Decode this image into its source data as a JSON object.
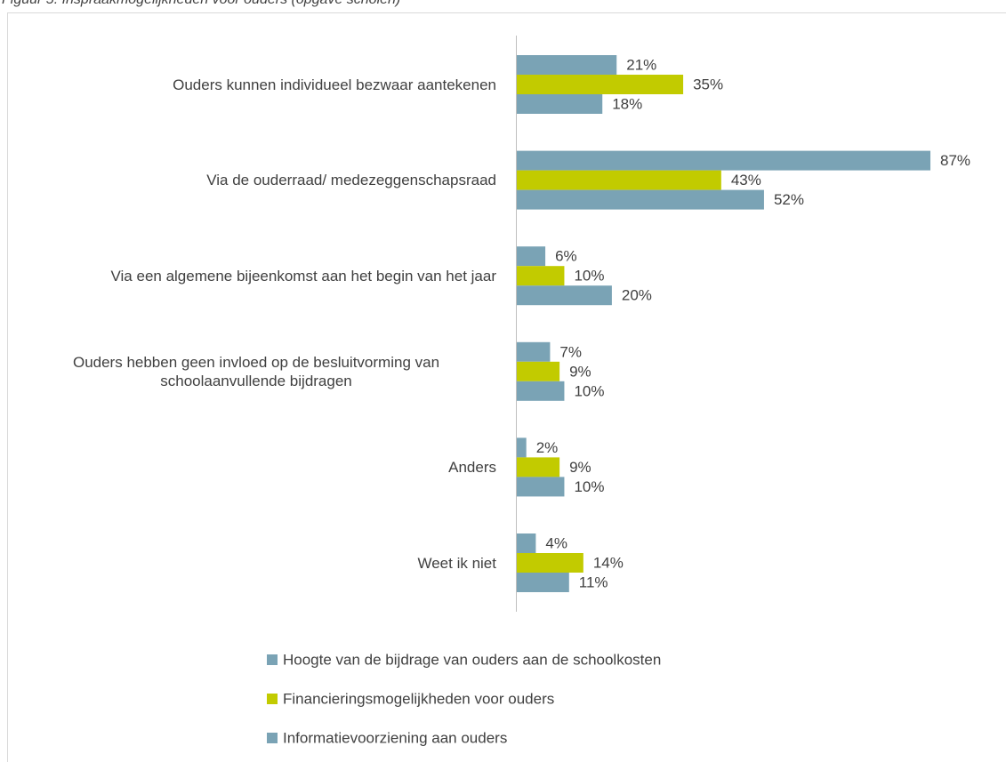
{
  "chart_data": {
    "type": "bar",
    "orientation": "horizontal",
    "title": "Figuur 5: Inspraakmogelijkheden voor ouders (opgave scholen)",
    "categories": [
      "Ouders kunnen individueel bezwaar aantekenen",
      "Via de ouderraad/ medezeggenschapsraad",
      "Via een algemene bijeenkomst aan het begin van het jaar",
      "Ouders hebben geen invloed op de besluitvorming van schoolaanvullende bijdragen",
      "Anders",
      "Weet ik niet"
    ],
    "series": [
      {
        "name": "Hoogte van de bijdrage van ouders aan de schoolkosten",
        "color": "#7aa3b5",
        "values": [
          21,
          87,
          6,
          7,
          2,
          4
        ],
        "value_labels": [
          "21%",
          "87%",
          "6%",
          "7%",
          "2%",
          "4%"
        ]
      },
      {
        "name": "Financieringsmogelijkheden voor ouders",
        "color": "#c2cb00",
        "values": [
          35,
          43,
          10,
          9,
          9,
          14
        ],
        "value_labels": [
          "35%",
          "43%",
          "10%",
          "9%",
          "9%",
          "14%"
        ]
      },
      {
        "name": "Informatievoorziening aan ouders",
        "color": "#7aa3b5",
        "values": [
          18,
          52,
          20,
          10,
          10,
          11
        ],
        "value_labels": [
          "18%",
          "52%",
          "20%",
          "10%",
          "10%",
          "11%"
        ]
      }
    ],
    "xlim": [
      0,
      100
    ],
    "legend": "bottom"
  }
}
